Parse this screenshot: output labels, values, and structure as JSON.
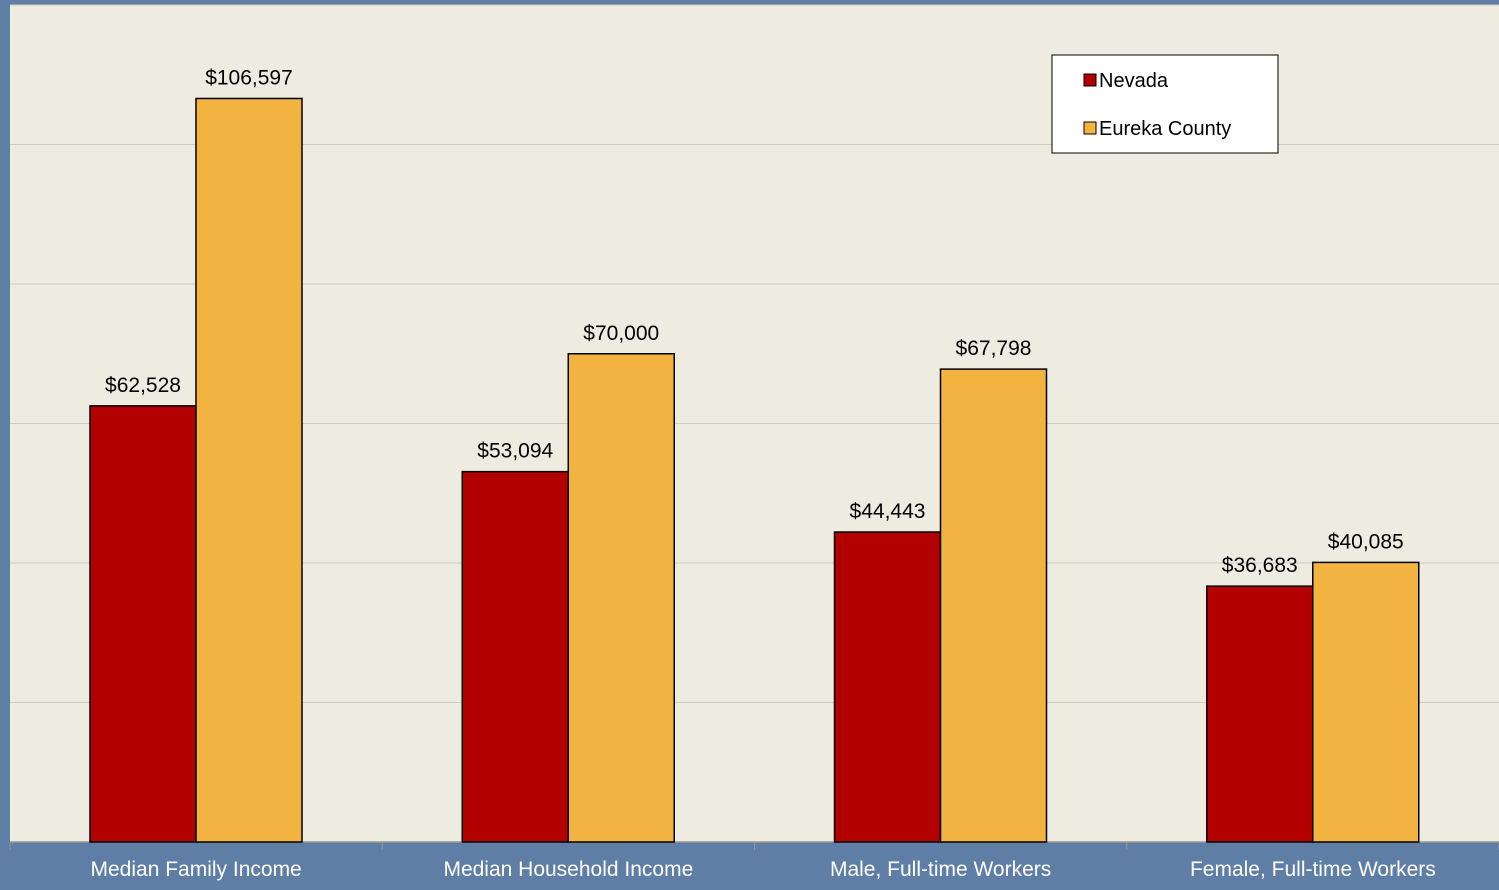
{
  "chart_data": {
    "type": "bar",
    "title": "",
    "xlabel": "",
    "ylabel": "",
    "categories": [
      "Median Family Income",
      "Median Household Income",
      "Male, Full-time Workers",
      "Female, Full-time Workers"
    ],
    "series": [
      {
        "name": "Nevada",
        "values": [
          62528,
          53094,
          44443,
          36683
        ],
        "labels": [
          "$62,528",
          "$53,094",
          "$44,443",
          "$36,683"
        ],
        "color": "#b30000"
      },
      {
        "name": "Eureka County",
        "values": [
          106597,
          70000,
          67798,
          40085
        ],
        "labels": [
          "$106,597",
          "$70,000",
          "$67,798",
          "$40,085"
        ],
        "color": "#f2b341"
      }
    ],
    "ylim": [
      0,
      120000
    ],
    "grid": true,
    "legend_position": "top-right",
    "colors": {
      "outer_background": "#5f7ea6",
      "plot_background": "#eeebe0",
      "gridline": "#cfccc3",
      "axis_label_text": "#ffffff"
    }
  }
}
